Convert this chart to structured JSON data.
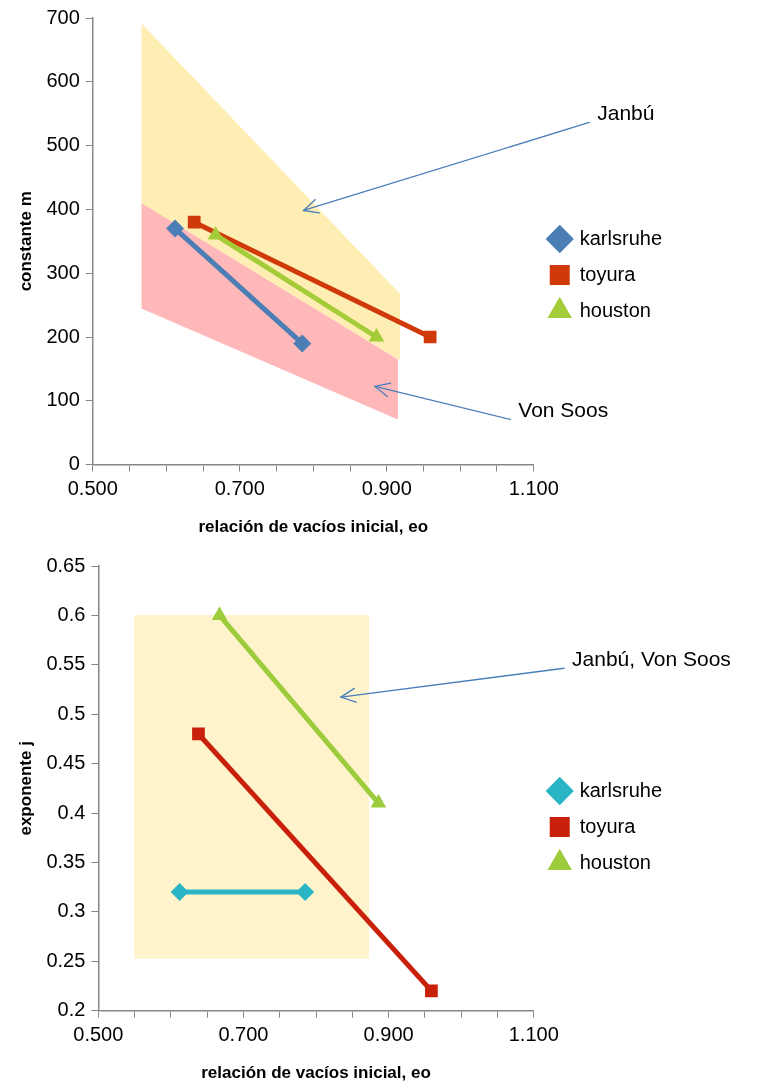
{
  "chart_data": [
    {
      "type": "line",
      "xlabel": "relación de vacíos inicial, eo",
      "ylabel": "constante m",
      "xlim": [
        0.5,
        1.1
      ],
      "xticks": [
        {
          "value": 0.5,
          "label": "0.500"
        },
        {
          "value": 0.55,
          "label": null
        },
        {
          "value": 0.6,
          "label": null
        },
        {
          "value": 0.65,
          "label": null
        },
        {
          "value": 0.7,
          "label": "0.700"
        },
        {
          "value": 0.75,
          "label": null
        },
        {
          "value": 0.8,
          "label": null
        },
        {
          "value": 0.85,
          "label": null
        },
        {
          "value": 0.9,
          "label": "0.900"
        },
        {
          "value": 0.95,
          "label": null
        },
        {
          "value": 1.0,
          "label": null
        },
        {
          "value": 1.05,
          "label": null
        },
        {
          "value": 1.1,
          "label": "1.100"
        }
      ],
      "ylim": [
        0,
        700
      ],
      "yticks": [
        0,
        100,
        200,
        300,
        400,
        500,
        600,
        700
      ],
      "legend": "right",
      "grid": false,
      "series": [
        {
          "color": "#ffeeb3",
          "x": [
            0.567,
            0.917
          ],
          "values": [
            null,
            null
          ],
          "lower": [
            410,
            165
          ],
          "upper": [
            690,
            268
          ]
        },
        {
          "color": "#ffb8ba",
          "x": [
            0.567,
            0.914
          ],
          "values": [
            null,
            null
          ],
          "lower": [
            245,
            72
          ],
          "upper": [
            410,
            165
          ]
        },
        {
          "name": "karlsruhe",
          "color": "#4a7eb5",
          "marker": "diamond",
          "x": [
            0.612,
            0.785
          ],
          "values": [
            370,
            190
          ]
        },
        {
          "name": "toyura",
          "color": "#d03a0a",
          "marker": "square",
          "x": [
            0.638,
            0.959
          ],
          "values": [
            380,
            200
          ]
        },
        {
          "name": "houston",
          "color": "#a4cc38",
          "marker": "triangle",
          "x": [
            0.667,
            0.886
          ],
          "values": [
            360,
            200
          ]
        }
      ],
      "annotations": [
        "Janbú",
        "Von Soos"
      ]
    },
    {
      "type": "line",
      "xlabel": "relación de vacíos inicial, eo",
      "ylabel": "exponente j",
      "xlim": [
        0.5,
        1.1
      ],
      "xticks": [
        {
          "value": 0.5,
          "label": "0.500"
        },
        {
          "value": 0.55,
          "label": null
        },
        {
          "value": 0.6,
          "label": null
        },
        {
          "value": 0.65,
          "label": null
        },
        {
          "value": 0.7,
          "label": "0.700"
        },
        {
          "value": 0.75,
          "label": null
        },
        {
          "value": 0.8,
          "label": null
        },
        {
          "value": 0.85,
          "label": null
        },
        {
          "value": 0.9,
          "label": "0.900"
        },
        {
          "value": 0.95,
          "label": null
        },
        {
          "value": 1.0,
          "label": null
        },
        {
          "value": 1.05,
          "label": null
        },
        {
          "value": 1.1,
          "label": "1.100"
        }
      ],
      "ylim": [
        0.2,
        0.65
      ],
      "yticks": [
        0.2,
        0.25,
        0.3,
        0.35,
        0.4,
        0.45,
        0.5,
        0.55,
        0.6,
        0.65
      ],
      "legend": "right",
      "grid": false,
      "series": [
        {
          "color": "#fff3cc",
          "x": [
            0.55,
            0.872
          ],
          "values": [
            null,
            null
          ],
          "lower": [
            0.253,
            0.253
          ],
          "upper": [
            0.6,
            0.6
          ]
        },
        {
          "name": "karlsruhe",
          "color": "#2ab5c5",
          "marker": "diamond",
          "x": [
            0.612,
            0.785
          ],
          "values": [
            0.32,
            0.32
          ]
        },
        {
          "name": "toyura",
          "color": "#c8200a",
          "marker": "square",
          "x": [
            0.638,
            0.959
          ],
          "values": [
            0.48,
            0.22
          ]
        },
        {
          "name": "houston",
          "color": "#9ccc3c",
          "marker": "triangle",
          "x": [
            0.667,
            0.886
          ],
          "values": [
            0.6,
            0.41
          ]
        }
      ],
      "annotations": [
        "Janbú, Von Soos"
      ]
    }
  ]
}
